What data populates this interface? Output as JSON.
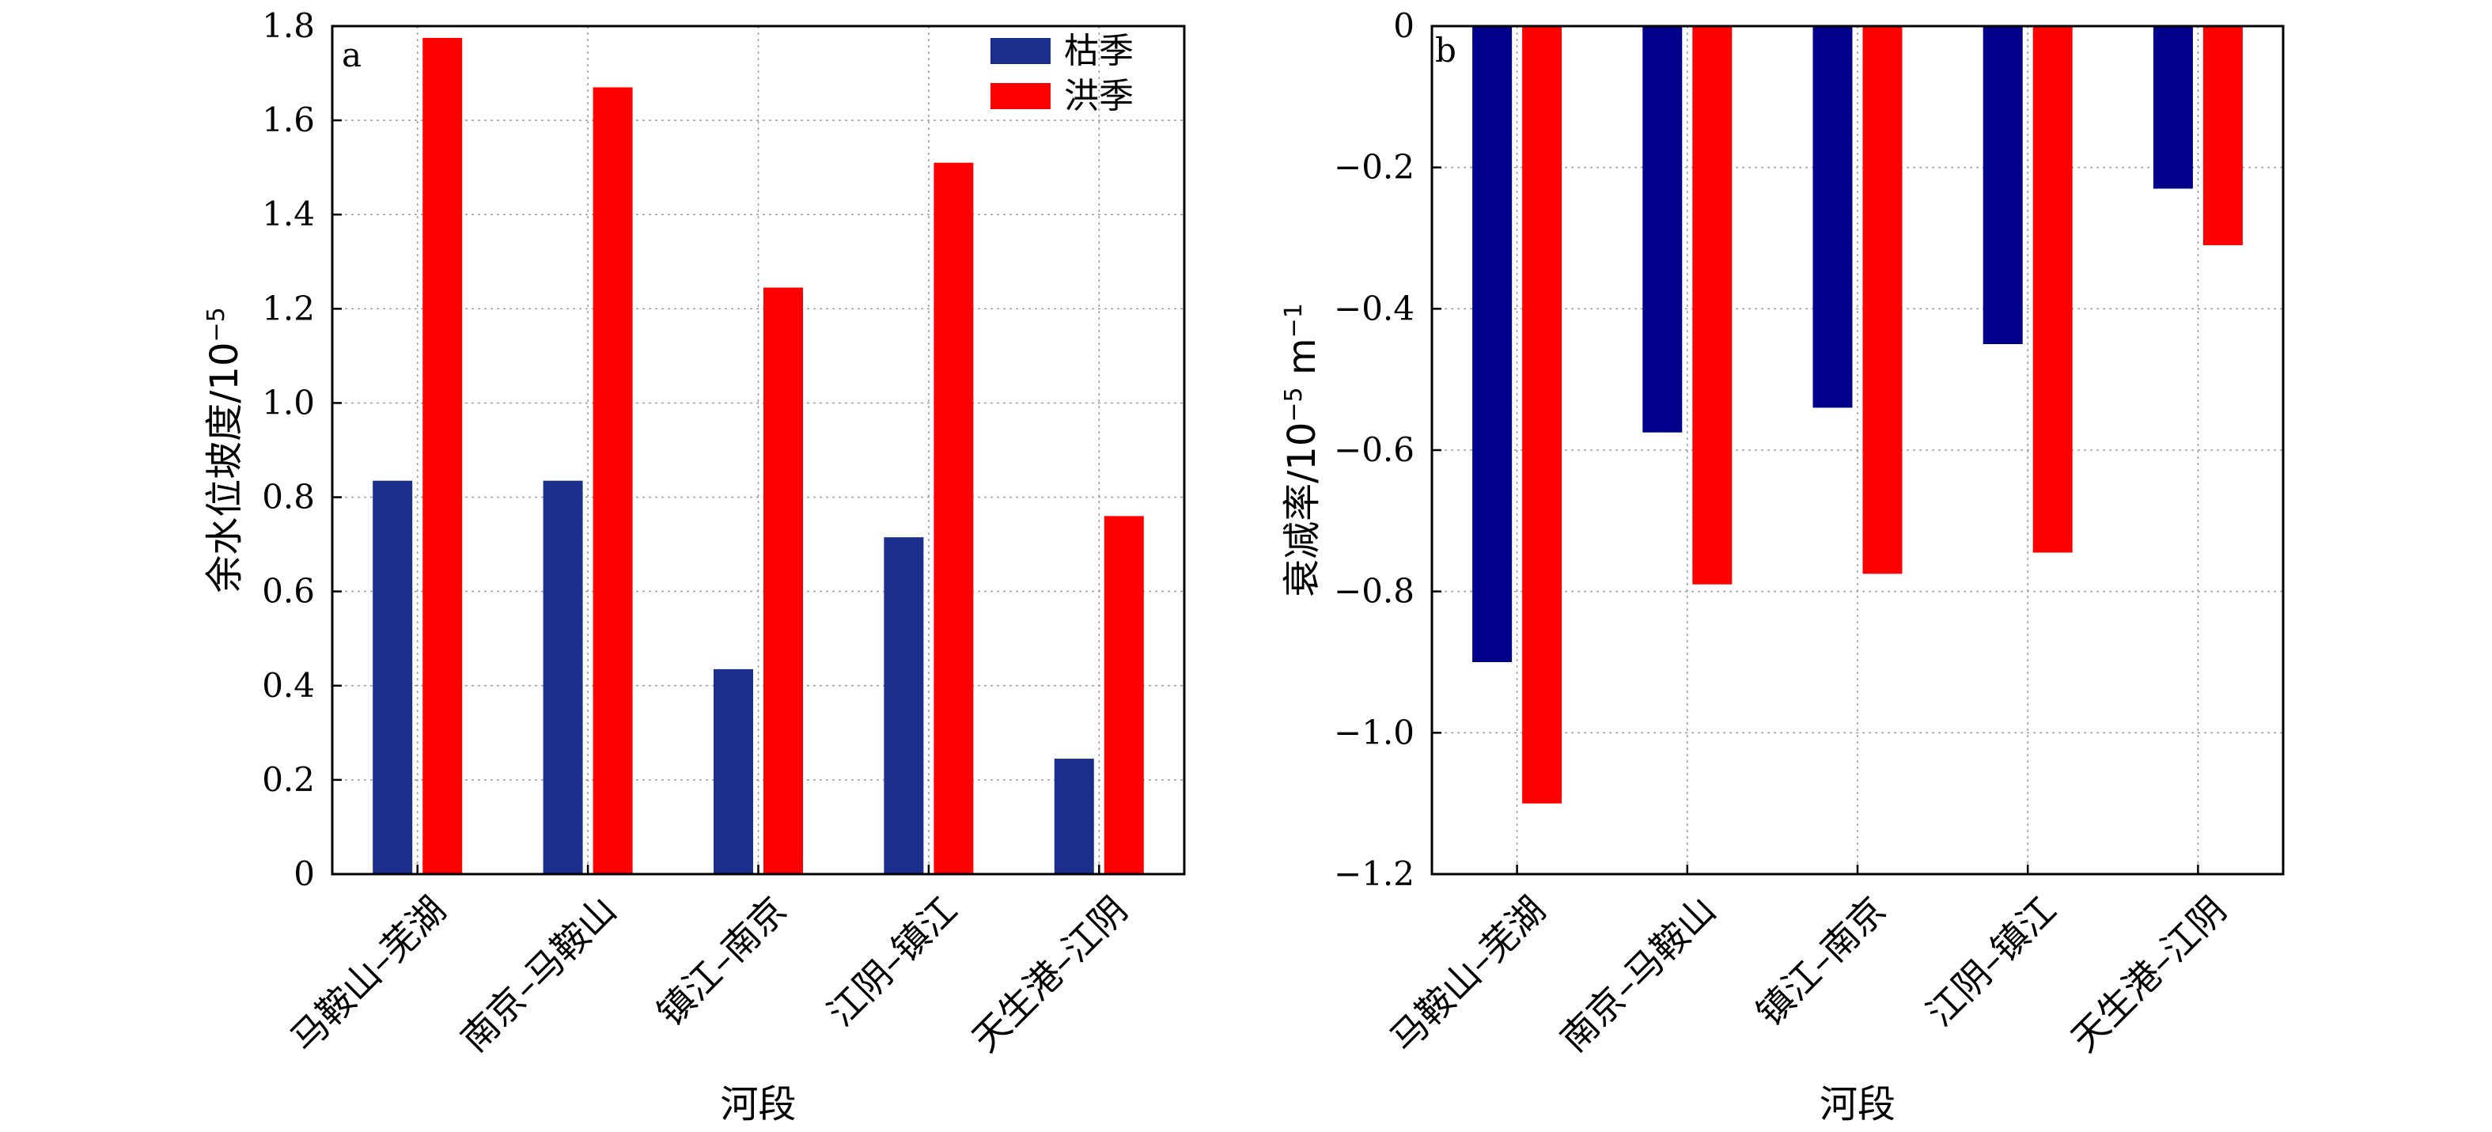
{
  "chart_data": [
    {
      "type": "bar",
      "panel_label": "a",
      "categories": [
        "马鞍山–芜湖",
        "南京–马鞍山",
        "镇江–南京",
        "江阴–镇江",
        "天生港–江阴"
      ],
      "series": [
        {
          "name": "枯季",
          "color": "#1A2E8C",
          "values": [
            0.835,
            0.835,
            0.435,
            0.715,
            0.245
          ]
        },
        {
          "name": "洪季",
          "color": "#FF0000",
          "values": [
            1.775,
            1.67,
            1.245,
            1.51,
            0.76
          ]
        }
      ],
      "xlabel": "河段",
      "ylabel_main": "余水位坡度/10",
      "ylabel_sup": "−5",
      "ylim": [
        0,
        1.8
      ],
      "yticks": [
        0,
        0.2,
        0.4,
        0.6,
        0.8,
        1.0,
        1.2,
        1.4,
        1.6,
        1.8
      ],
      "ytick_labels": [
        "0",
        "0.2",
        "0.4",
        "0.6",
        "0.8",
        "1.0",
        "1.2",
        "1.4",
        "1.6",
        "1.8"
      ],
      "grid": true,
      "legend": "top-right"
    },
    {
      "type": "bar",
      "panel_label": "b",
      "categories": [
        "马鞍山–芜湖",
        "南京–马鞍山",
        "镇江–南京",
        "江阴–镇江",
        "天生港–江阴"
      ],
      "series": [
        {
          "name": "枯季",
          "color": "#00008B",
          "values": [
            -0.9,
            -0.575,
            -0.54,
            -0.45,
            -0.23
          ]
        },
        {
          "name": "洪季",
          "color": "#FF0000",
          "values": [
            -1.1,
            -0.79,
            -0.775,
            -0.745,
            -0.31
          ]
        }
      ],
      "xlabel": "河段",
      "ylabel_main": "衰减率/10",
      "ylabel_sup": "−5",
      "ylabel_unit": " m",
      "ylabel_sup2": "−1",
      "ylim": [
        -1.2,
        0
      ],
      "yticks": [
        0,
        -0.2,
        -0.4,
        -0.6,
        -0.8,
        -1.0,
        -1.2
      ],
      "ytick_labels": [
        "0",
        "−0.2",
        "−0.4",
        "−0.6",
        "−0.8",
        "−1.0",
        "−1.2"
      ],
      "grid": true
    }
  ]
}
